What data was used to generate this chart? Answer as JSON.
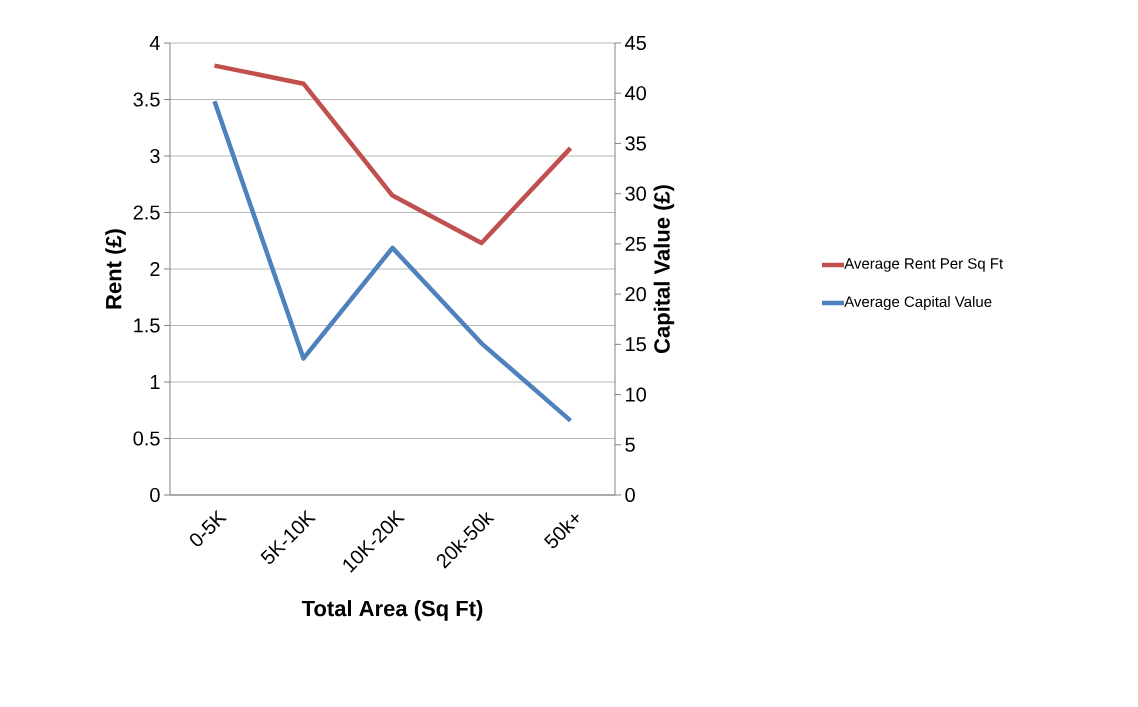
{
  "chart_data": {
    "type": "line",
    "xlabel": "Total Area (Sq Ft)",
    "ylabel": "Rent (£)",
    "y2label": "Capital Value (£)",
    "categories": [
      "0-5K",
      "5K-10K",
      "10K-20K",
      "20k-50k",
      "50k+"
    ],
    "series": [
      {
        "name": "Average Rent Per Sq Ft",
        "color": "#c0504d",
        "values": [
          3.8,
          3.64,
          2.65,
          2.23,
          3.07
        ]
      },
      {
        "name": "Average Capital Value",
        "color": "#4f81bd",
        "axis": "y2",
        "values": [
          39.2,
          13.6,
          24.6,
          15.1,
          7.4
        ]
      }
    ],
    "ylim": [
      0,
      4
    ],
    "yticks": [
      0,
      0.5,
      1,
      1.5,
      2,
      2.5,
      3,
      3.5,
      4
    ],
    "y2lim": [
      0,
      45
    ],
    "y2ticks": [
      0,
      5,
      10,
      15,
      20,
      25,
      30,
      35,
      40,
      45
    ],
    "grid": "y",
    "legend": "right",
    "marker": "none",
    "line_style": "solid"
  }
}
